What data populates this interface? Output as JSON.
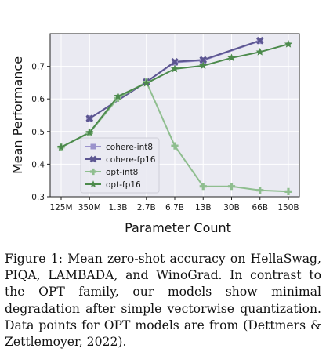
{
  "chart_data": {
    "type": "line",
    "title": "",
    "xlabel": "Parameter Count",
    "ylabel": "Mean Performance",
    "categories": [
      "125M",
      "350M",
      "1.3B",
      "2.7B",
      "6.7B",
      "13B",
      "30B",
      "66B",
      "150B"
    ],
    "yticks": [
      "0.3",
      "0.4",
      "0.5",
      "0.6",
      "0.7"
    ],
    "ylim": [
      0.3,
      0.8
    ],
    "grid": true,
    "legend_position": "lower-left",
    "series": [
      {
        "name": "cohere-int8",
        "color": "#9b93cc",
        "marker": "square",
        "values": [
          null,
          0.54,
          null,
          0.652,
          0.712,
          0.718,
          null,
          0.778,
          null
        ]
      },
      {
        "name": "cohere-fp16",
        "color": "#5c5691",
        "marker": "x",
        "values": [
          null,
          0.54,
          null,
          0.652,
          0.714,
          0.72,
          null,
          0.779,
          null
        ]
      },
      {
        "name": "opt-int8",
        "color": "#8fbe8f",
        "marker": "plus",
        "values": [
          0.452,
          0.496,
          0.602,
          0.652,
          0.456,
          0.332,
          0.332,
          0.32,
          0.316
        ]
      },
      {
        "name": "opt-fp16",
        "color": "#4c8a4c",
        "marker": "star",
        "values": [
          0.452,
          0.497,
          0.608,
          0.648,
          0.692,
          0.702,
          0.726,
          0.744,
          0.768
        ]
      }
    ]
  },
  "caption": "Figure 1: Mean zero-shot accuracy on HellaSwag, PIQA, LAMBADA, and WinoGrad. In contrast to the OPT family, our models show minimal degradation after simple vectorwise quantization. Data points for OPT models are from (Dettmers & Zettlemoyer, 2022)."
}
